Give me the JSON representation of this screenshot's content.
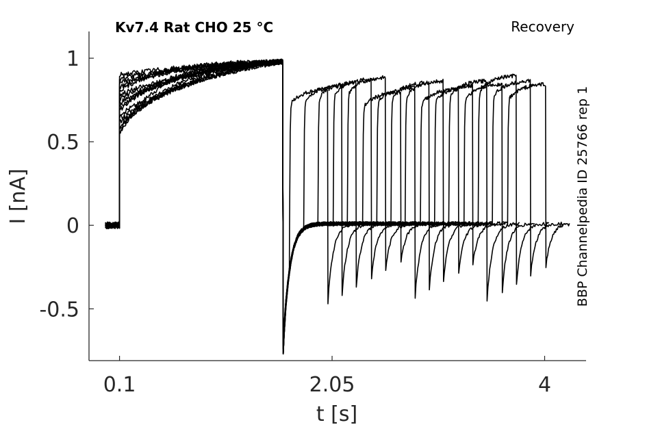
{
  "header": {
    "title": "Kv7.4  Rat  CHO  25 °C",
    "protocol": "Recovery",
    "source": "BBP Channelpedia ID 25766 rep 1"
  },
  "chart_data": {
    "type": "line",
    "title": "Kv7.4  Rat  CHO  25 °C",
    "xlabel": "t [s]",
    "ylabel": "I [nA]",
    "xlim": [
      -0.18,
      4.38
    ],
    "ylim": [
      -0.81,
      1.16
    ],
    "x_ticks": [
      0.1,
      2.05,
      4
    ],
    "x_tick_labels": [
      "0.1",
      "2.05",
      "4"
    ],
    "y_ticks": [
      -0.5,
      0,
      0.5,
      1
    ],
    "y_tick_labels": [
      "-0.5",
      "0",
      "0.5",
      "1"
    ],
    "grid": false,
    "legend": "none",
    "line_color": "#000000",
    "n_sweeps": 16,
    "holding_current": 0.0,
    "activation_onset_s": 0.1,
    "prepulse_end_s": 1.6,
    "prepulse_end_current": 0.98,
    "prepulse_early_current_range": [
      0.55,
      0.9
    ],
    "tail_minimum_current": -0.77,
    "recovery_steady_current": 0.01,
    "recovery_step_times_s": [
      1.66,
      1.79,
      1.92,
      2.06,
      2.19,
      2.33,
      2.46,
      2.59,
      2.72,
      2.86,
      2.99,
      3.12,
      3.26,
      3.39,
      3.52,
      3.66
    ],
    "recovery_step_peak_currents": [
      0.82,
      0.84,
      0.86,
      0.88,
      0.89,
      0.8,
      0.83,
      0.86,
      0.87,
      0.82,
      0.84,
      0.87,
      0.85,
      0.9,
      0.87,
      0.85
    ],
    "test_pulse_duration_s": 0.35,
    "post_test_tail_minimum_range": [
      -0.47,
      -0.22
    ]
  }
}
